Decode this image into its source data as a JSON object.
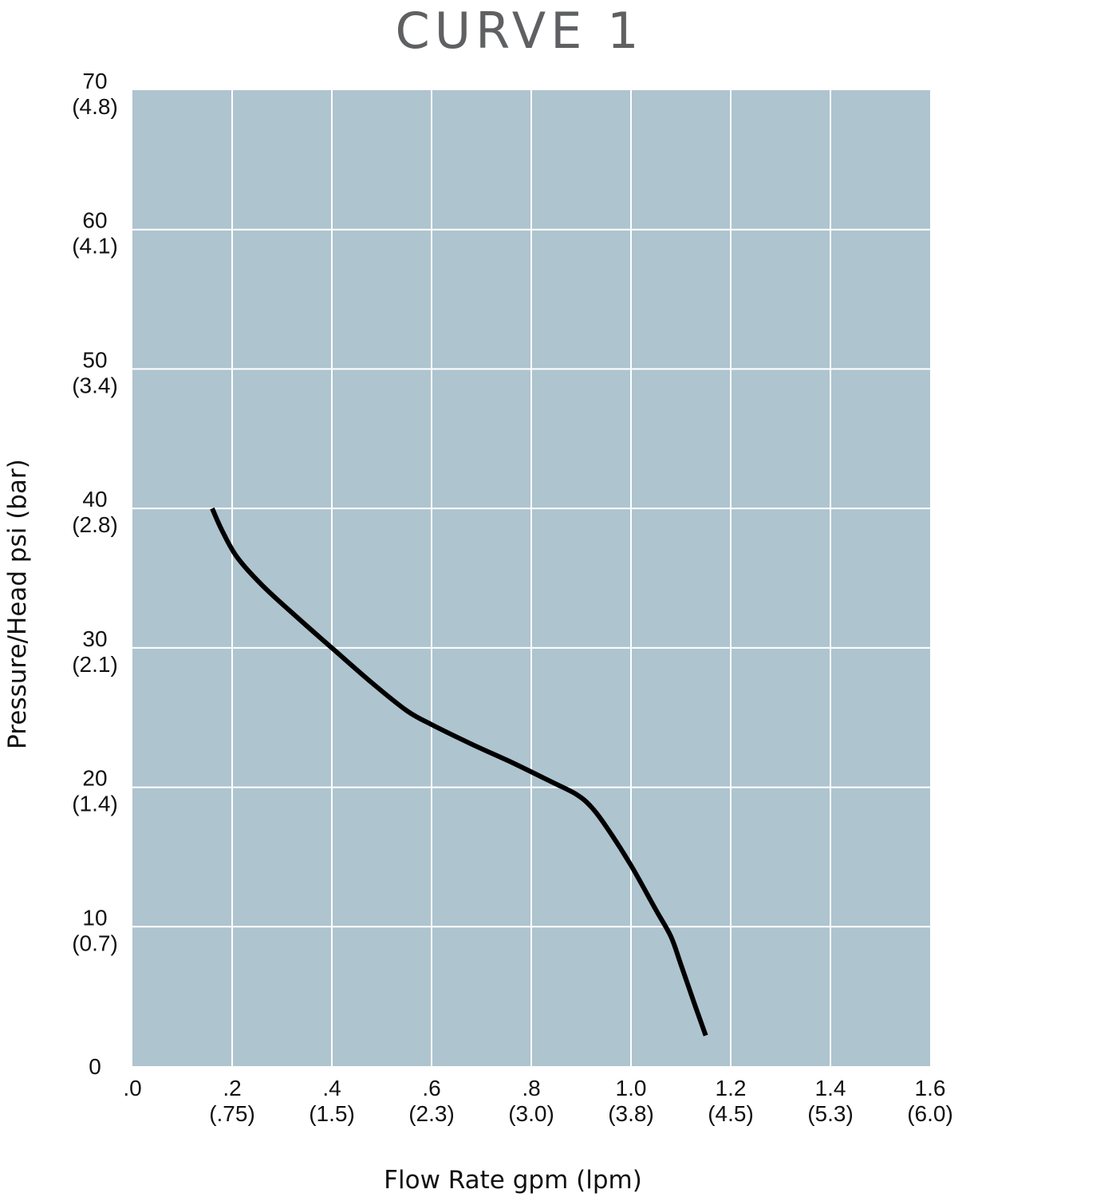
{
  "chart_data": {
    "type": "line",
    "title": "CURVE 1",
    "xlabel": "Flow Rate gpm (lpm)",
    "ylabel": "Pressure/Head psi (bar)",
    "xlim": [
      0,
      1.6
    ],
    "ylim": [
      0,
      70
    ],
    "grid": true,
    "plot_background": "#aec4cf",
    "line_color": "#000000",
    "x_ticks": [
      {
        "value": 0.0,
        "label": ".0",
        "sub": ""
      },
      {
        "value": 0.2,
        "label": ".2",
        "sub": "(.75)"
      },
      {
        "value": 0.4,
        "label": ".4",
        "sub": "(1.5)"
      },
      {
        "value": 0.6,
        "label": ".6",
        "sub": "(2.3)"
      },
      {
        "value": 0.8,
        "label": ".8",
        "sub": "(3.0)"
      },
      {
        "value": 1.0,
        "label": "1.0",
        "sub": "(3.8)"
      },
      {
        "value": 1.2,
        "label": "1.2",
        "sub": "(4.5)"
      },
      {
        "value": 1.4,
        "label": "1.4",
        "sub": "(5.3)"
      },
      {
        "value": 1.6,
        "label": "1.6",
        "sub": "(6.0)"
      }
    ],
    "y_ticks": [
      {
        "value": 0,
        "label": "0",
        "sub": ""
      },
      {
        "value": 10,
        "label": "10",
        "sub": "(0.7)"
      },
      {
        "value": 20,
        "label": "20",
        "sub": "(1.4)"
      },
      {
        "value": 30,
        "label": "30",
        "sub": "(2.1)"
      },
      {
        "value": 40,
        "label": "40",
        "sub": "(2.8)"
      },
      {
        "value": 50,
        "label": "50",
        "sub": "(3.4)"
      },
      {
        "value": 60,
        "label": "60",
        "sub": "(4.1)"
      },
      {
        "value": 70,
        "label": "70",
        "sub": "(4.8)"
      }
    ],
    "series": [
      {
        "x": [
          0.16,
          0.18,
          0.21,
          0.26,
          0.33,
          0.4,
          0.48,
          0.55,
          0.6,
          0.68,
          0.76,
          0.84,
          0.89,
          0.92,
          0.95,
          1.0,
          1.05,
          1.08,
          1.1,
          1.13,
          1.15
        ],
        "y": [
          40.0,
          38.4,
          36.5,
          34.5,
          32.2,
          30.0,
          27.5,
          25.5,
          24.5,
          23.1,
          21.8,
          20.4,
          19.5,
          18.6,
          17.2,
          14.4,
          11.2,
          9.3,
          7.3,
          4.2,
          2.2
        ]
      }
    ]
  }
}
